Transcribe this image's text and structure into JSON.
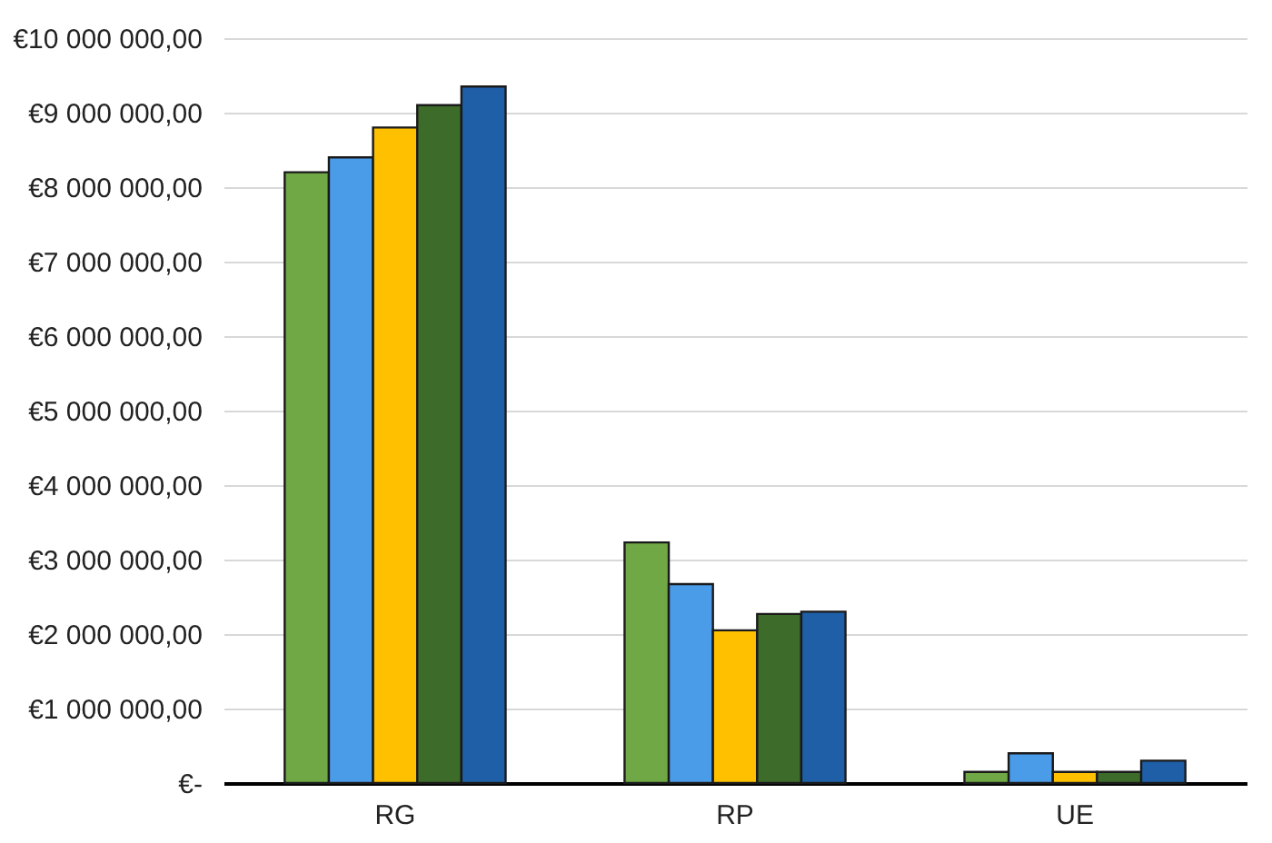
{
  "chart_data": {
    "type": "bar",
    "categories": [
      "RG",
      "RP",
      "UE"
    ],
    "series": [
      {
        "color": "#70a845",
        "values": [
          8200000,
          3230000,
          150000
        ]
      },
      {
        "color": "#4a9be8",
        "values": [
          8400000,
          2670000,
          400000
        ]
      },
      {
        "color": "#ffc000",
        "values": [
          8800000,
          2050000,
          150000
        ]
      },
      {
        "color": "#3d6b2a",
        "values": [
          9100000,
          2270000,
          150000
        ]
      },
      {
        "color": "#1f5fa8",
        "values": [
          9350000,
          2300000,
          300000
        ]
      }
    ],
    "ylim": [
      0,
      10000000
    ],
    "yticks": [
      {
        "value": 0,
        "label": "€-"
      },
      {
        "value": 1000000,
        "label": "€1 000 000,00"
      },
      {
        "value": 2000000,
        "label": "€2 000 000,00"
      },
      {
        "value": 3000000,
        "label": "€3 000 000,00"
      },
      {
        "value": 4000000,
        "label": "€4 000 000,00"
      },
      {
        "value": 5000000,
        "label": "€5 000 000,00"
      },
      {
        "value": 6000000,
        "label": "€6 000 000,00"
      },
      {
        "value": 7000000,
        "label": "€7 000 000,00"
      },
      {
        "value": 8000000,
        "label": "€8 000 000,00"
      },
      {
        "value": 9000000,
        "label": "€9 000 000,00"
      },
      {
        "value": 10000000,
        "label": "€10 000 000,00"
      }
    ],
    "grid": "y",
    "legend": false
  }
}
